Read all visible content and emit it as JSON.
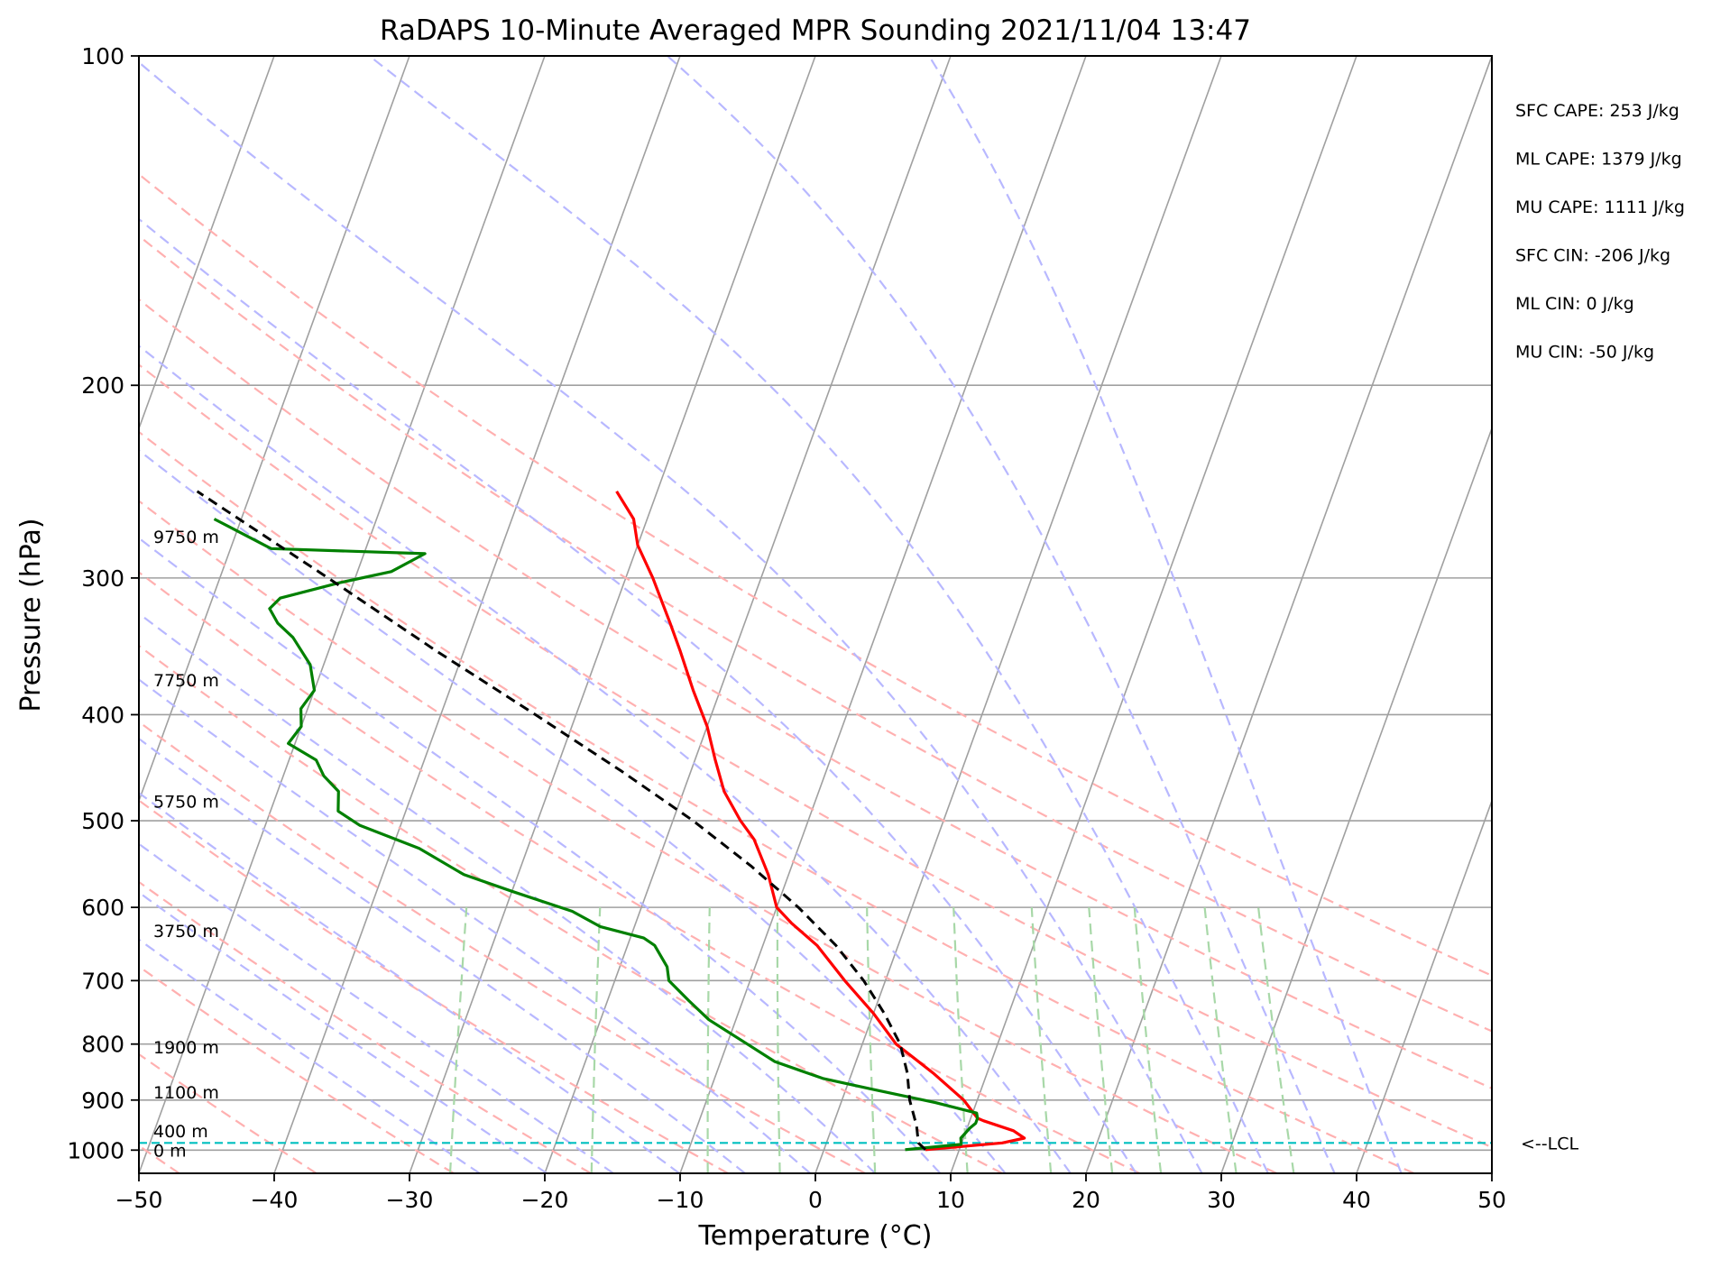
{
  "chart_data": {
    "type": "line",
    "title": "RaDAPS 10-Minute Averaged MPR Sounding 2021/11/04 13:47",
    "xlabel": "Temperature (°C)",
    "ylabel": "Pressure (hPa)",
    "xlim": [
      -50,
      50
    ],
    "ylim": [
      1050,
      100
    ],
    "y_scale": "log",
    "skew": "skew-T log-P",
    "grid": true,
    "x_ticks": [
      -50,
      -40,
      -30,
      -20,
      -10,
      0,
      10,
      20,
      30,
      40,
      50
    ],
    "x_tick_labels": [
      "−50",
      "−40",
      "−30",
      "−20",
      "−10",
      "0",
      "10",
      "20",
      "30",
      "40",
      "50"
    ],
    "y_ticks": [
      100,
      200,
      300,
      400,
      500,
      600,
      700,
      800,
      900,
      1000
    ],
    "y_tick_labels": [
      "100",
      "200",
      "300",
      "400",
      "500",
      "600",
      "700",
      "800",
      "900",
      "1000"
    ],
    "series": [
      {
        "role": "temperature",
        "color": "#ff0000",
        "points": [
          [
            999,
            7.5
          ],
          [
            985,
            13.0
          ],
          [
            975,
            14.5
          ],
          [
            960,
            13.5
          ],
          [
            940,
            11.0
          ],
          [
            935,
            10.5
          ],
          [
            900,
            9.0
          ],
          [
            850,
            6.0
          ],
          [
            800,
            2.5
          ],
          [
            750,
            0.0
          ],
          [
            700,
            -3.0
          ],
          [
            650,
            -6.0
          ],
          [
            620,
            -8.5
          ],
          [
            600,
            -10.0
          ],
          [
            560,
            -11.5
          ],
          [
            520,
            -13.5
          ],
          [
            500,
            -15.0
          ],
          [
            470,
            -17.0
          ],
          [
            440,
            -18.5
          ],
          [
            410,
            -20.0
          ],
          [
            380,
            -22.0
          ],
          [
            350,
            -24.0
          ],
          [
            330,
            -25.5
          ],
          [
            300,
            -28.0
          ],
          [
            280,
            -30.0
          ],
          [
            265,
            -31.0
          ],
          [
            250,
            -33.0
          ]
        ]
      },
      {
        "role": "dewpoint",
        "color": "#008000",
        "points": [
          [
            999,
            6.0
          ],
          [
            988,
            10.0
          ],
          [
            975,
            9.8
          ],
          [
            965,
            10.0
          ],
          [
            955,
            10.2
          ],
          [
            945,
            10.5
          ],
          [
            935,
            10.5
          ],
          [
            925,
            10.3
          ],
          [
            905,
            7.0
          ],
          [
            880,
            2.0
          ],
          [
            860,
            -2.0
          ],
          [
            830,
            -6.0
          ],
          [
            800,
            -8.5
          ],
          [
            760,
            -12.0
          ],
          [
            730,
            -14.0
          ],
          [
            700,
            -16.0
          ],
          [
            680,
            -16.5
          ],
          [
            650,
            -18.0
          ],
          [
            640,
            -19.0
          ],
          [
            625,
            -22.5
          ],
          [
            605,
            -25.0
          ],
          [
            580,
            -30.0
          ],
          [
            560,
            -34.0
          ],
          [
            530,
            -38.0
          ],
          [
            505,
            -43.0
          ],
          [
            490,
            -45.0
          ],
          [
            470,
            -45.5
          ],
          [
            455,
            -47.0
          ],
          [
            440,
            -48.0
          ],
          [
            425,
            -50.5
          ],
          [
            410,
            -50.0
          ],
          [
            395,
            -50.5
          ],
          [
            380,
            -50.0
          ],
          [
            360,
            -51.0
          ],
          [
            340,
            -53.0
          ],
          [
            330,
            -54.5
          ],
          [
            320,
            -55.5
          ],
          [
            313,
            -55.0
          ],
          [
            303,
            -51.0
          ],
          [
            296,
            -47.5
          ],
          [
            285,
            -45.5
          ],
          [
            282,
            -57.0
          ],
          [
            265,
            -62.0
          ]
        ]
      },
      {
        "role": "parcel path",
        "color": "#000000",
        "style": "dashed",
        "points": [
          [
            999,
            7.5
          ],
          [
            985,
            6.8
          ],
          [
            950,
            6.2
          ],
          [
            900,
            5.0
          ],
          [
            850,
            4.1
          ],
          [
            800,
            2.8
          ],
          [
            750,
            0.8
          ],
          [
            700,
            -1.6
          ],
          [
            650,
            -4.6
          ],
          [
            600,
            -8.4
          ],
          [
            550,
            -13.0
          ],
          [
            500,
            -18.5
          ],
          [
            450,
            -25.2
          ],
          [
            400,
            -33.0
          ],
          [
            350,
            -42.0
          ],
          [
            300,
            -52.0
          ],
          [
            250,
            -64.0
          ]
        ]
      }
    ],
    "lcl": {
      "pressure_hPa": 985,
      "label": "<--LCL",
      "color": "#00bfbf"
    },
    "height_labels": [
      {
        "pressure_hPa": 1000,
        "text": "0 m"
      },
      {
        "pressure_hPa": 960,
        "text": "400 m"
      },
      {
        "pressure_hPa": 885,
        "text": "1100 m"
      },
      {
        "pressure_hPa": 805,
        "text": "1900 m"
      },
      {
        "pressure_hPa": 630,
        "text": "3750 m"
      },
      {
        "pressure_hPa": 480,
        "text": "5750 m"
      },
      {
        "pressure_hPa": 372,
        "text": "7750 m"
      },
      {
        "pressure_hPa": 275,
        "text": "9750 m"
      }
    ],
    "stats": [
      "SFC CAPE: 253 J/kg",
      "ML CAPE: 1379 J/kg",
      "MU CAPE: 1111 J/kg",
      "SFC CIN: -206 J/kg",
      "ML CIN: 0 J/kg",
      "MU CIN: -50 J/kg"
    ],
    "background_lines": {
      "isotherms_color": "#a0a0a0",
      "dry_adiabats_color": "#ffb0b0",
      "moist_adiabats_color": "#b8b8ff",
      "mixing_ratio_color": "#a8d8a8"
    }
  }
}
